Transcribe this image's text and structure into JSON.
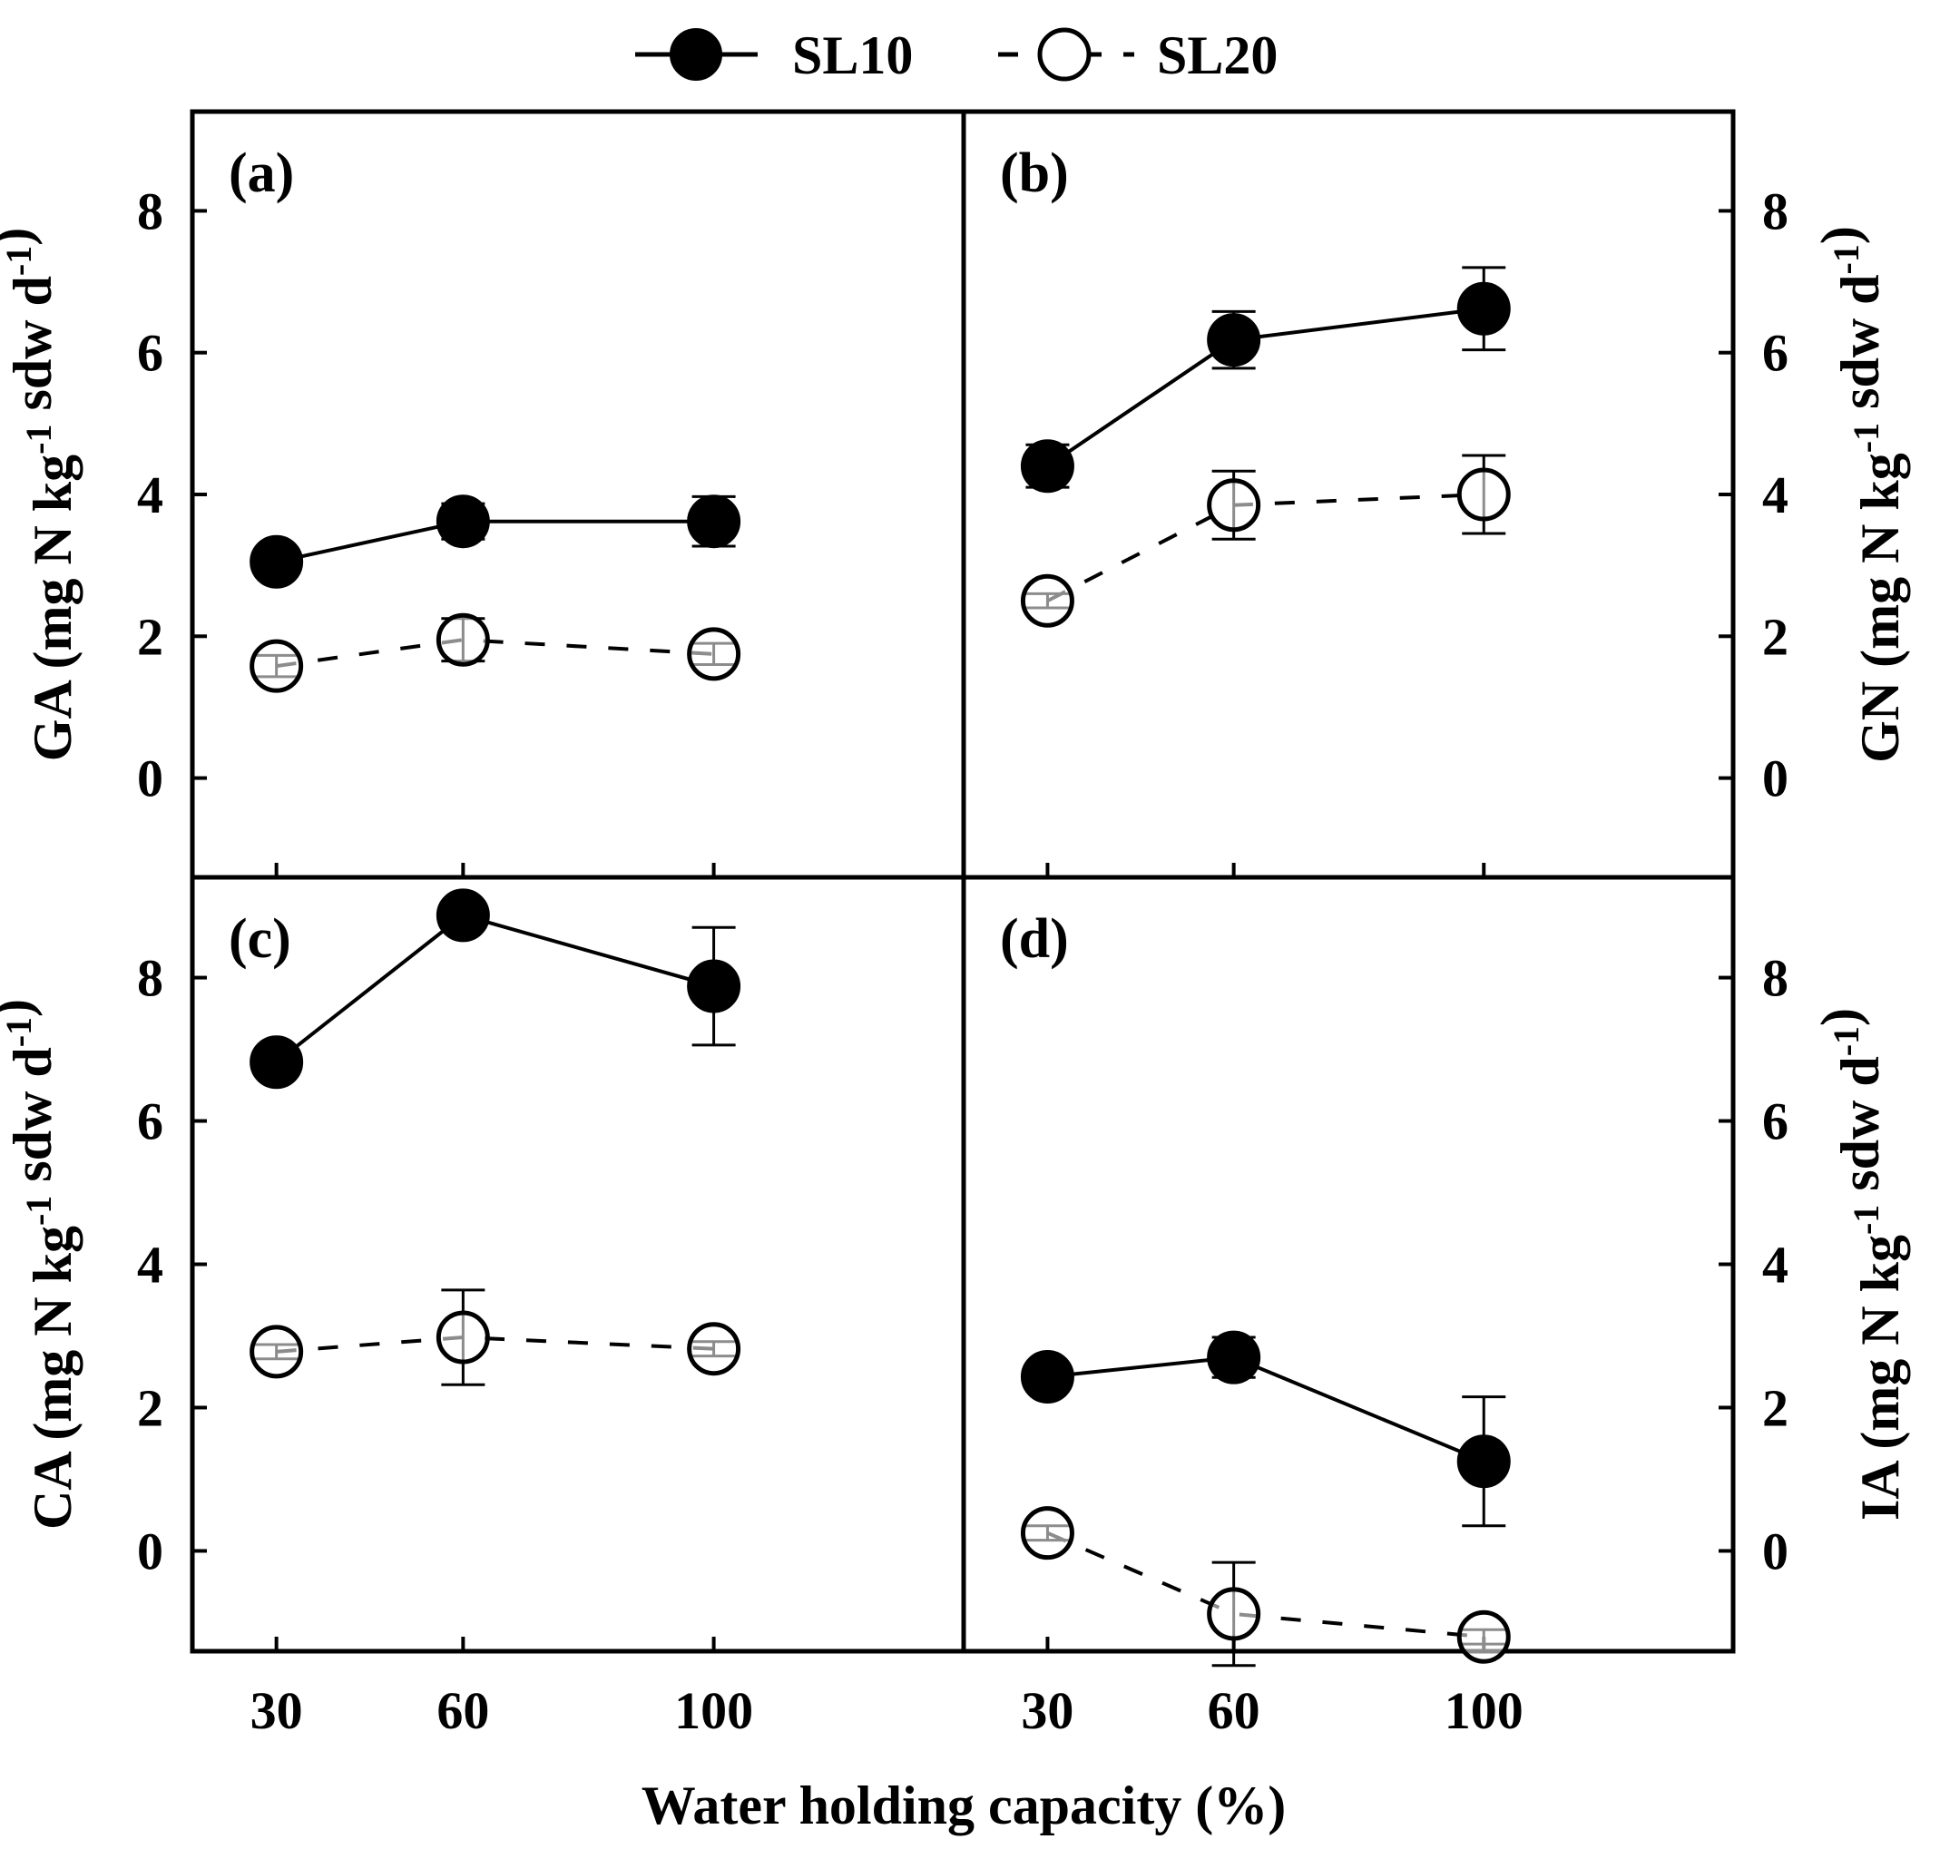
{
  "legend": [
    {
      "name": "SL10",
      "marker": "filled-circle",
      "line": "solid"
    },
    {
      "name": "SL20",
      "marker": "open-circle",
      "line": "dashed"
    }
  ],
  "xlabel": "Water holding capacity (%)",
  "chart_data": [
    {
      "type": "line",
      "panel": "(a)",
      "ylabel": "GA (mg N kg-1 sdw d-1)",
      "ylabel_parts": {
        "pre": "GA (mg N kg",
        "sup1": "-1",
        "mid": " sdw d",
        "sup2": "-1",
        "post": ")"
      },
      "ylabel_side": "left",
      "categories": [
        30,
        60,
        100
      ],
      "ylim": [
        -1.4,
        9.4
      ],
      "yticks": [
        0,
        2,
        4,
        6,
        8
      ],
      "series": [
        {
          "name": "SL10",
          "values": [
            3.05,
            3.62,
            3.62
          ],
          "errors": [
            0.1,
            0.25,
            0.35
          ]
        },
        {
          "name": "SL20",
          "values": [
            1.58,
            1.95,
            1.75
          ],
          "errors": [
            0.15,
            0.3,
            0.15
          ]
        }
      ]
    },
    {
      "type": "line",
      "panel": "(b)",
      "ylabel": "GN (mg N kg-1 sdw d-1)",
      "ylabel_parts": {
        "pre": "GN (mg N kg",
        "sup1": "-1",
        "mid": " sdw d",
        "sup2": "-1",
        "post": ")"
      },
      "ylabel_side": "right",
      "categories": [
        30,
        60,
        100
      ],
      "ylim": [
        -1.4,
        9.4
      ],
      "yticks": [
        0,
        2,
        4,
        6,
        8
      ],
      "series": [
        {
          "name": "SL10",
          "values": [
            4.4,
            6.18,
            6.62
          ],
          "errors": [
            0.3,
            0.4,
            0.58
          ]
        },
        {
          "name": "SL20",
          "values": [
            2.5,
            3.85,
            4.0
          ],
          "errors": [
            0.1,
            0.48,
            0.55
          ]
        }
      ]
    },
    {
      "type": "line",
      "panel": "(c)",
      "ylabel": "CA (mg N kg-1 sdw d-1)",
      "ylabel_parts": {
        "pre": "CA (mg N kg",
        "sup1": "-1",
        "mid": " sdw d",
        "sup2": "-1",
        "post": ")"
      },
      "ylabel_side": "left",
      "categories": [
        30,
        60,
        100
      ],
      "ylim": [
        -1.4,
        9.4
      ],
      "yticks": [
        0,
        2,
        4,
        6,
        8
      ],
      "series": [
        {
          "name": "SL10",
          "values": [
            6.82,
            8.87,
            7.88
          ],
          "errors": [
            0.1,
            0.1,
            0.82
          ]
        },
        {
          "name": "SL20",
          "values": [
            2.78,
            2.98,
            2.82
          ],
          "errors": [
            0.1,
            0.66,
            0.1
          ]
        }
      ]
    },
    {
      "type": "line",
      "panel": "(d)",
      "ylabel": "IA (mg N kg-1 sdw d-1)",
      "ylabel_parts": {
        "pre": "IA (mg N kg",
        "sup1": "-1",
        "mid": " sdw d",
        "sup2": "-1",
        "post": ")"
      },
      "ylabel_side": "right",
      "categories": [
        30,
        60,
        100
      ],
      "ylim": [
        -1.4,
        9.4
      ],
      "yticks": [
        0,
        2,
        4,
        6,
        8
      ],
      "series": [
        {
          "name": "SL10",
          "values": [
            2.43,
            2.7,
            1.25
          ],
          "errors": [
            0.1,
            0.28,
            0.9
          ]
        },
        {
          "name": "SL20",
          "values": [
            0.25,
            -0.88,
            -1.2
          ],
          "errors": [
            0.1,
            0.72,
            0.1
          ]
        }
      ]
    }
  ]
}
